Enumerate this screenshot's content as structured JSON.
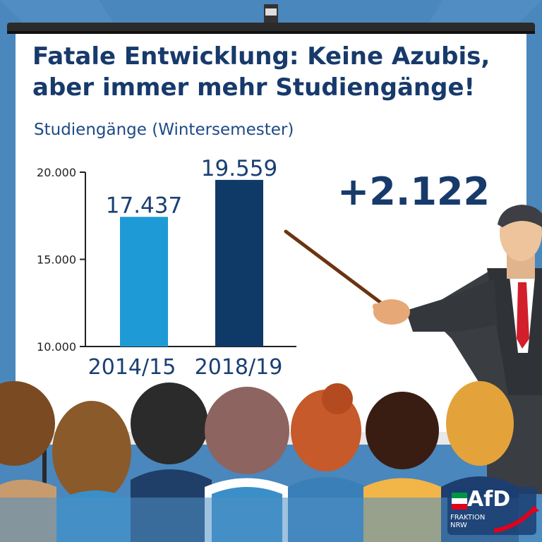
{
  "title_line1": "Fatale Entwicklung: Keine Azubis,",
  "title_line2": "aber immer mehr Studiengänge!",
  "subtitle": "Studiengänge (Wintersemester)",
  "delta_label": "+2.122",
  "colors": {
    "title": "#173a6b",
    "bar_2014": "#1e9ad6",
    "bar_2018": "#0f3a68",
    "background": "#4a87bd",
    "screen": "#ffffff"
  },
  "chart_data": {
    "type": "bar",
    "categories": [
      "2014/15",
      "2018/19"
    ],
    "values": [
      17437,
      19559
    ],
    "value_labels": [
      "17.437",
      "19.559"
    ],
    "yticks": [
      "20.000",
      "15.000",
      "10.000"
    ],
    "ytick_values": [
      20000,
      15000,
      10000
    ],
    "ylim": [
      10000,
      20000
    ],
    "title": "Studiengänge (Wintersemester)",
    "grid": false
  },
  "logo": {
    "text": "AfD",
    "sub_line1": "FRAKTION",
    "sub_line2": "NRW"
  }
}
